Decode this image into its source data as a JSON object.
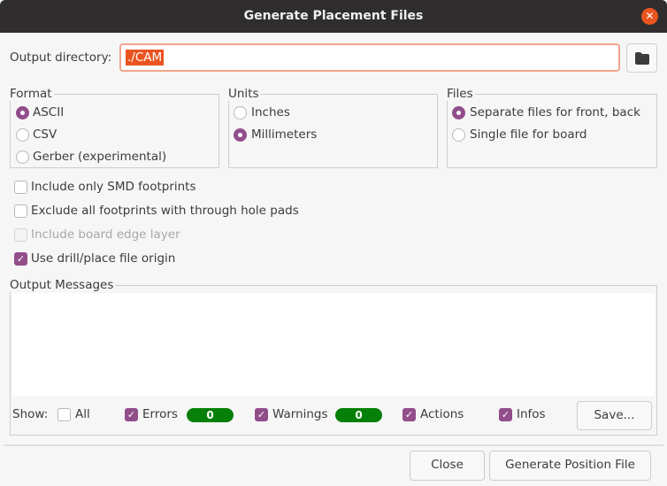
{
  "window": {
    "title": "Generate Placement Files",
    "close_icon": "close-icon"
  },
  "output": {
    "label": "Output directory:",
    "value": "./CAM",
    "browse_icon": "folder-icon"
  },
  "format": {
    "legend": "Format",
    "options": [
      {
        "label": "ASCII",
        "selected": true
      },
      {
        "label": "CSV",
        "selected": false
      },
      {
        "label": "Gerber (experimental)",
        "selected": false
      }
    ]
  },
  "units": {
    "legend": "Units",
    "options": [
      {
        "label": "Inches",
        "selected": false
      },
      {
        "label": "Millimeters",
        "selected": true
      }
    ]
  },
  "files": {
    "legend": "Files",
    "options": [
      {
        "label": "Separate files for front, back",
        "selected": true
      },
      {
        "label": "Single file for board",
        "selected": false
      }
    ]
  },
  "options": [
    {
      "label": "Include only SMD footprints",
      "checked": false,
      "enabled": true
    },
    {
      "label": "Exclude all footprints with through hole pads",
      "checked": false,
      "enabled": true
    },
    {
      "label": "Include board edge layer",
      "checked": false,
      "enabled": false
    },
    {
      "label": "Use drill/place file origin",
      "checked": true,
      "enabled": true
    }
  ],
  "messages": {
    "legend": "Output Messages",
    "show_label": "Show:",
    "all": "All",
    "errors": "Errors",
    "errors_count": "0",
    "warnings": "Warnings",
    "warnings_count": "0",
    "actions": "Actions",
    "infos": "Infos",
    "save": "Save...",
    "badge_color": "#078009"
  },
  "footer": {
    "close": "Close",
    "generate": "Generate Position File"
  },
  "colors": {
    "accent": "#924d8b",
    "highlight": "#e95420",
    "titlebar": "#2f2d2d"
  }
}
